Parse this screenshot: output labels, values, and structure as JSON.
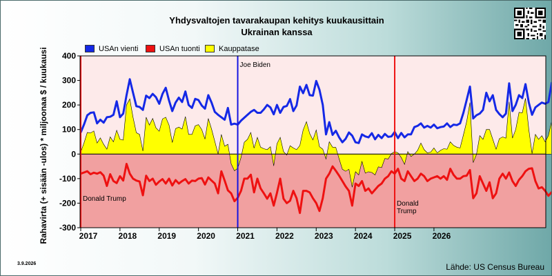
{
  "title": "Yhdysvaltojen tavarakaupan kehitys kuukausittain",
  "subtitle": "Ukrainan kanssa",
  "date_label": "3.9.2026",
  "source": "Lähde: US Census Bureau",
  "chart_data": {
    "type": "line",
    "title": "Yhdysvaltojen tavarakaupan kehitys kuukausittain",
    "subtitle": "Ukrainan kanssa",
    "xlabel": "",
    "ylabel": "Rahavirta (+ sisään -ulos)  * miljoonaa $ / kuukausi",
    "ylim": [
      -300,
      400
    ],
    "yticks": [
      400,
      300,
      200,
      100,
      0,
      -100,
      -200,
      -300
    ],
    "x_start": "2017-01",
    "x_end": "2026-06",
    "xticks": [
      "2017",
      "2018",
      "2019",
      "2020",
      "2021",
      "2022",
      "2023",
      "2024",
      "2025",
      "2026"
    ],
    "grid": false,
    "legend_position": "top-left",
    "background_bands": {
      "positive": "#fdeaea",
      "negative": "#f1a0a0"
    },
    "series": [
      {
        "name": "USAn vienti",
        "color": "#1428e6",
        "values": [
          88,
          120,
          158,
          168,
          170,
          125,
          140,
          128,
          150,
          152,
          160,
          215,
          150,
          165,
          240,
          305,
          250,
          195,
          192,
          180,
          238,
          228,
          245,
          232,
          205,
          245,
          270,
          218,
          175,
          210,
          230,
          212,
          255,
          200,
          188,
          225,
          220,
          198,
          185,
          240,
          210,
          172,
          160,
          150,
          140,
          188,
          120,
          124,
          120,
          136,
          148,
          160,
          172,
          180,
          168,
          168,
          182,
          200,
          190,
          162,
          200,
          168,
          192,
          196,
          224,
          175,
          198,
          275,
          248,
          282,
          240,
          238,
          298,
          262,
          200,
          80,
          130,
          78,
          95,
          68,
          48,
          62,
          88,
          75,
          48,
          45,
          80,
          72,
          68,
          85,
          60,
          78,
          65,
          82,
          70,
          72,
          90,
          65,
          86,
          68,
          80,
          80,
          110,
          115,
          125,
          108,
          115,
          108,
          120,
          105,
          110,
          112,
          125,
          110,
          120,
          118,
          125,
          168,
          220,
          275,
          145,
          158,
          165,
          180,
          250,
          215,
          240,
          180,
          163,
          150,
          165,
          288,
          175,
          200,
          240,
          228,
          285,
          210,
          160,
          190,
          200,
          210,
          205,
          212,
          290,
          240,
          285
        ]
      },
      {
        "name": "USAn tuonti",
        "color": "#ee1111",
        "values": [
          -80,
          -75,
          -70,
          -82,
          -76,
          -80,
          -74,
          -88,
          -130,
          -82,
          -110,
          -118,
          -90,
          -108,
          -40,
          -80,
          -100,
          -108,
          -112,
          -168,
          -88,
          -110,
          -100,
          -125,
          -112,
          -102,
          -120,
          -100,
          -128,
          -106,
          -120,
          -110,
          -102,
          -120,
          -108,
          -110,
          -100,
          -98,
          -124,
          -95,
          -108,
          -120,
          -160,
          -70,
          -108,
          -148,
          -160,
          -192,
          -178,
          -150,
          -100,
          -100,
          -84,
          -156,
          -100,
          -140,
          -160,
          -182,
          -160,
          -210,
          -158,
          -100,
          -182,
          -200,
          -190,
          -150,
          -180,
          -240,
          -150,
          -150,
          -156,
          -180,
          -200,
          -232,
          -180,
          -100,
          -80,
          -50,
          -68,
          -88,
          -110,
          -132,
          -150,
          -210,
          -120,
          -130,
          -110,
          -150,
          -140,
          -160,
          -145,
          -130,
          -120,
          -100,
          -90,
          -70,
          -80,
          -60,
          -100,
          -110,
          -70,
          -90,
          -110,
          -100,
          -80,
          -90,
          -110,
          -100,
          -95,
          -90,
          -100,
          -90,
          -105,
          -60,
          -85,
          -100,
          -100,
          -90,
          -88,
          -65,
          -180,
          -160,
          -90,
          -120,
          -150,
          -115,
          -180,
          -160,
          -100,
          -80,
          -100,
          -75,
          -110,
          -130,
          -105,
          -90,
          -70,
          -60,
          -58,
          -110,
          -140,
          -135,
          -150,
          -170,
          -155,
          -150,
          -95,
          -70
        ]
      },
      {
        "name": "Kauppatase",
        "color": "#ffff00",
        "values": [
          8,
          45,
          88,
          86,
          94,
          45,
          66,
          40,
          20,
          70,
          50,
          97,
          60,
          57,
          200,
          225,
          150,
          87,
          80,
          12,
          150,
          118,
          145,
          107,
          93,
          143,
          150,
          118,
          47,
          104,
          110,
          102,
          153,
          80,
          80,
          115,
          120,
          100,
          61,
          145,
          102,
          52,
          0,
          80,
          32,
          40,
          -40,
          -68,
          -58,
          -14,
          48,
          60,
          88,
          24,
          68,
          28,
          22,
          18,
          30,
          -48,
          42,
          68,
          10,
          -4,
          34,
          25,
          18,
          35,
          98,
          132,
          84,
          58,
          98,
          30,
          20,
          -20,
          50,
          28,
          27,
          -20,
          -62,
          -70,
          -62,
          -135,
          -72,
          -85,
          -30,
          -78,
          -72,
          -75,
          -85,
          -52,
          -55,
          -18,
          -20,
          2,
          10,
          5,
          -14,
          -42,
          10,
          -10,
          0,
          15,
          45,
          18,
          5,
          8,
          25,
          5,
          15,
          22,
          20,
          50,
          35,
          28,
          25,
          78,
          132,
          210,
          -35,
          -2,
          75,
          60,
          100,
          100,
          60,
          20,
          63,
          70,
          65,
          213,
          65,
          100,
          170,
          168,
          227,
          100,
          2,
          80,
          60,
          75,
          50,
          75,
          135,
          105,
          215
        ]
      }
    ],
    "annotations": [
      {
        "x": "2017-01",
        "label": "Donald Trump",
        "color": "#ee1111",
        "label_y": -190
      },
      {
        "x": "2021-01",
        "label": "Joe Biden",
        "color": "#1414e0",
        "label_y": 355
      },
      {
        "x": "2025-01",
        "label": "Donald\nTrump",
        "color": "#ee1111",
        "label_y": -210
      }
    ]
  }
}
